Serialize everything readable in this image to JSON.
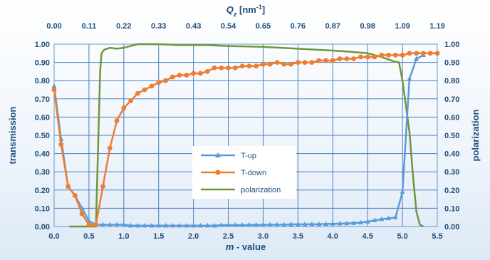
{
  "chart_data": {
    "type": "line",
    "xlabel": "m - value",
    "xlabel_italic": "m",
    "xlabel_rest": " - value",
    "x2label_q": "Q",
    "x2label_sub": "z",
    "x2label_unit": " [nm",
    "x2label_exp": "-1",
    "x2label_close": "]",
    "ylabel_left": "transmission",
    "ylabel_right": "polarization",
    "xlim": [
      0,
      5.5
    ],
    "ylim": [
      0,
      1
    ],
    "x_ticks": [
      "0.0",
      "0.5",
      "1.0",
      "1.5",
      "2.0",
      "2.5",
      "3.0",
      "3.5",
      "4.0",
      "4.5",
      "5.0",
      "5.5"
    ],
    "x2_ticks": [
      "0.00",
      "0.11",
      "0.22",
      "0.33",
      "0.43",
      "0.54",
      "0.65",
      "0.76",
      "0.87",
      "0.98",
      "1.09",
      "1.19"
    ],
    "y_ticks": [
      "0.00",
      "0.10",
      "0.20",
      "0.30",
      "0.40",
      "0.50",
      "0.60",
      "0.70",
      "0.80",
      "0.90",
      "1.00"
    ],
    "grid": true,
    "legend_position": "center",
    "series": [
      {
        "name": "T-up",
        "color": "#5b9bd5",
        "marker": "triangle",
        "x": [
          0.0,
          0.1,
          0.2,
          0.3,
          0.4,
          0.5,
          0.6,
          0.7,
          0.8,
          0.9,
          1.0,
          1.1,
          1.2,
          1.3,
          1.4,
          1.5,
          1.6,
          1.7,
          1.8,
          1.9,
          2.0,
          2.1,
          2.2,
          2.3,
          2.4,
          2.5,
          2.6,
          2.7,
          2.8,
          2.9,
          3.0,
          3.1,
          3.2,
          3.3,
          3.4,
          3.5,
          3.6,
          3.7,
          3.8,
          3.9,
          4.0,
          4.1,
          4.2,
          4.3,
          4.4,
          4.5,
          4.6,
          4.7,
          4.8,
          4.9,
          5.0,
          5.1,
          5.2,
          5.3
        ],
        "y": [
          0.77,
          0.48,
          0.22,
          0.17,
          0.1,
          0.03,
          0.01,
          0.01,
          0.01,
          0.01,
          0.01,
          0.005,
          0.005,
          0.005,
          0.005,
          0.005,
          0.005,
          0.005,
          0.005,
          0.005,
          0.005,
          0.005,
          0.005,
          0.005,
          0.008,
          0.008,
          0.008,
          0.008,
          0.009,
          0.009,
          0.01,
          0.01,
          0.01,
          0.01,
          0.012,
          0.012,
          0.012,
          0.013,
          0.013,
          0.014,
          0.015,
          0.016,
          0.017,
          0.019,
          0.022,
          0.027,
          0.034,
          0.04,
          0.045,
          0.05,
          0.19,
          0.81,
          0.92,
          0.94
        ]
      },
      {
        "name": "T-down",
        "color": "#ed7d31",
        "marker": "circle",
        "x": [
          0.0,
          0.1,
          0.2,
          0.3,
          0.4,
          0.5,
          0.6,
          0.7,
          0.8,
          0.9,
          1.0,
          1.1,
          1.2,
          1.3,
          1.4,
          1.5,
          1.6,
          1.7,
          1.8,
          1.9,
          2.0,
          2.1,
          2.2,
          2.3,
          2.4,
          2.5,
          2.6,
          2.7,
          2.8,
          2.9,
          3.0,
          3.1,
          3.2,
          3.3,
          3.4,
          3.5,
          3.6,
          3.7,
          3.8,
          3.9,
          4.0,
          4.1,
          4.2,
          4.3,
          4.4,
          4.5,
          4.6,
          4.7,
          4.8,
          4.9,
          5.0,
          5.1,
          5.2,
          5.3,
          5.4,
          5.5
        ],
        "y": [
          0.75,
          0.45,
          0.22,
          0.17,
          0.07,
          0.01,
          0.01,
          0.22,
          0.43,
          0.58,
          0.65,
          0.69,
          0.73,
          0.75,
          0.77,
          0.79,
          0.8,
          0.82,
          0.83,
          0.83,
          0.84,
          0.84,
          0.85,
          0.87,
          0.87,
          0.87,
          0.87,
          0.88,
          0.88,
          0.88,
          0.89,
          0.89,
          0.9,
          0.89,
          0.89,
          0.9,
          0.9,
          0.9,
          0.91,
          0.91,
          0.91,
          0.92,
          0.92,
          0.92,
          0.93,
          0.93,
          0.93,
          0.94,
          0.94,
          0.94,
          0.94,
          0.95,
          0.95,
          0.95,
          0.95,
          0.95
        ]
      },
      {
        "name": "polarization",
        "color": "#70963a",
        "marker": "none",
        "x": [
          0.22,
          0.6,
          0.66,
          0.68,
          0.72,
          0.8,
          0.9,
          1.0,
          1.1,
          1.2,
          1.5,
          1.8,
          2.0,
          2.2,
          2.5,
          3.0,
          3.5,
          4.0,
          4.2,
          4.5,
          4.7,
          4.88,
          4.95,
          5.0,
          5.1,
          5.15,
          5.2,
          5.25,
          5.3
        ],
        "y": [
          0.0,
          0.0,
          0.85,
          0.95,
          0.97,
          0.98,
          0.975,
          0.98,
          0.99,
          1.0,
          1.0,
          0.995,
          0.995,
          0.995,
          0.99,
          0.985,
          0.975,
          0.965,
          0.96,
          0.95,
          0.93,
          0.905,
          0.9,
          0.8,
          0.52,
          0.28,
          0.08,
          0.01,
          0.0
        ]
      }
    ]
  }
}
